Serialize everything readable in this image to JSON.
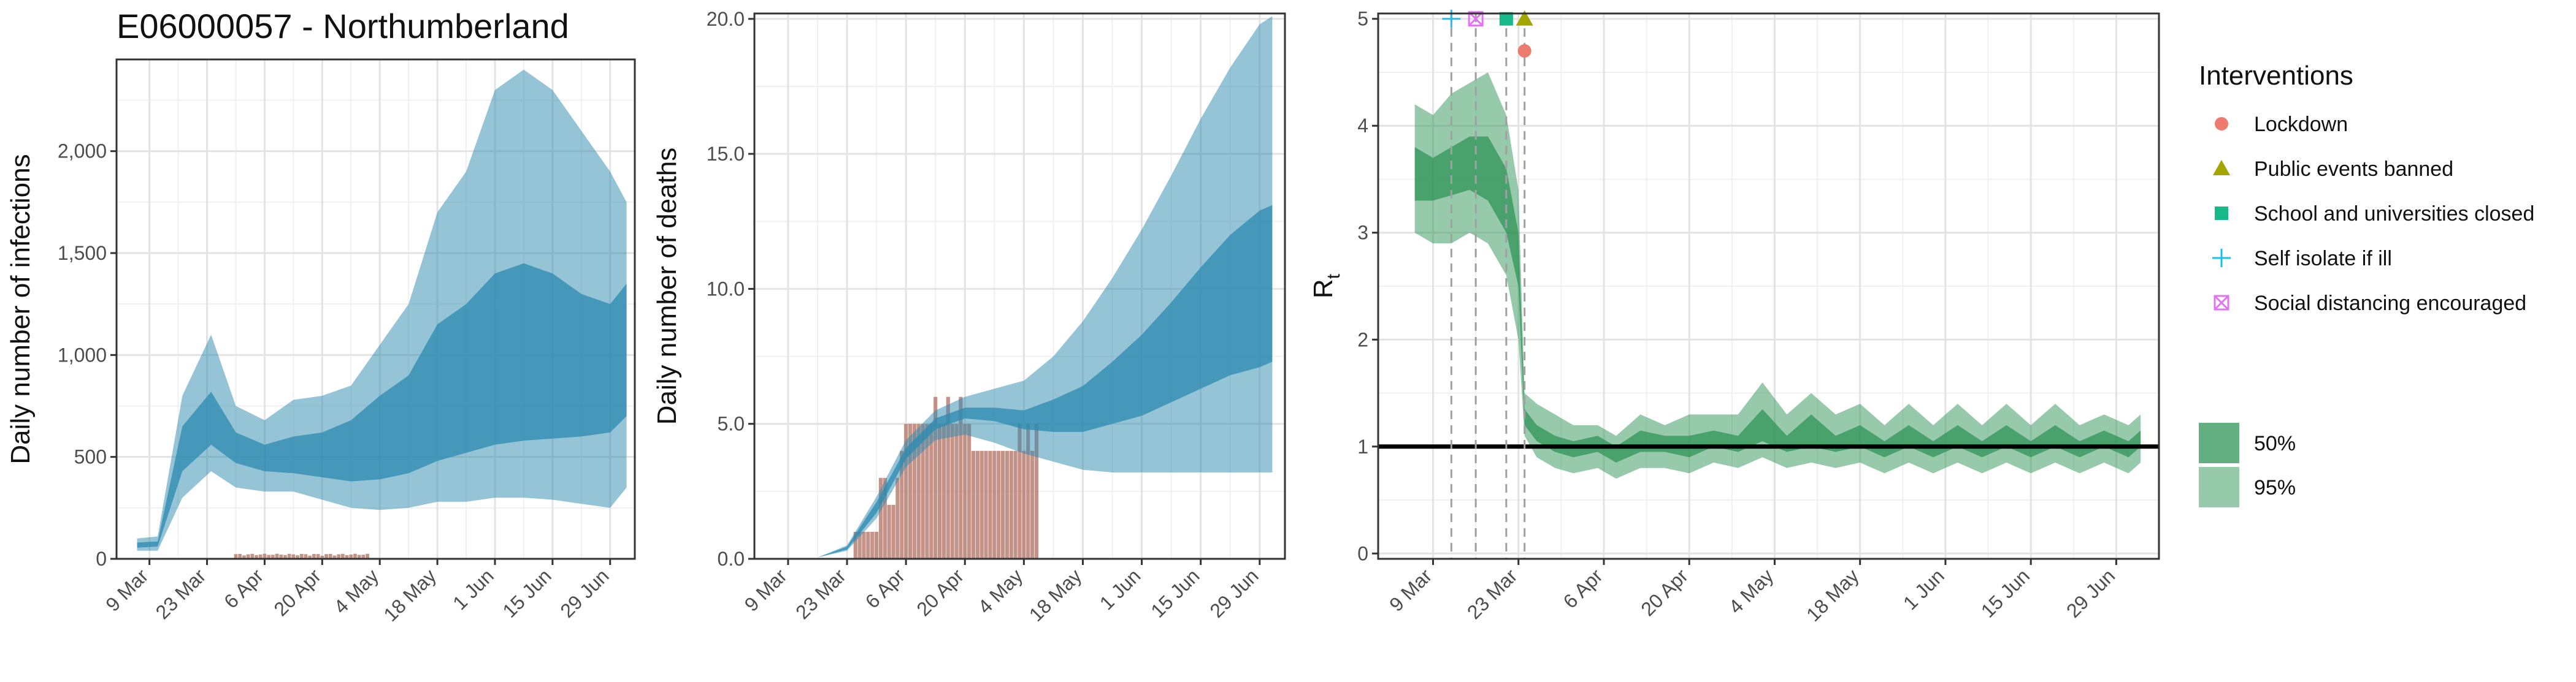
{
  "page_title": "E06000057 - Northumberland",
  "colors": {
    "infection_band": "#2b8ab0",
    "death_bar": "#b5786a",
    "rt_band": "#2f9457",
    "lockdown": "#ee7b6f",
    "public_events": "#a3a500",
    "school": "#17b889",
    "self_isolate": "#1ac0ef",
    "social_distancing": "#df73f2"
  },
  "chart_data": [
    {
      "type": "area",
      "ylabel": "Daily number of infections",
      "date_ticks": [
        "9 Mar",
        "23 Mar",
        "6 Apr",
        "20 Apr",
        "4 May",
        "18 May",
        "1 Jun",
        "15 Jun",
        "29 Jun"
      ],
      "y_ticks": [
        "0",
        "500",
        "1,000",
        "1,500",
        "2,000"
      ],
      "ylim": [
        0,
        2450
      ],
      "xlim": [
        "2020-03-01",
        "2020-07-05"
      ],
      "grid": true,
      "bars": {
        "name": "observed cases",
        "start": "2020-03-30",
        "end": "2020-05-01",
        "level": 25
      },
      "bands": [
        {
          "name": "95%",
          "dates": [
            "2020-03-06",
            "2020-03-11",
            "2020-03-17",
            "2020-03-24",
            "2020-03-30",
            "2020-04-06",
            "2020-04-13",
            "2020-04-20",
            "2020-04-27",
            "2020-05-04",
            "2020-05-11",
            "2020-05-18",
            "2020-05-25",
            "2020-06-01",
            "2020-06-08",
            "2020-06-15",
            "2020-06-22",
            "2020-06-29",
            "2020-07-03"
          ],
          "lower": [
            40,
            40,
            300,
            430,
            350,
            330,
            330,
            290,
            250,
            240,
            250,
            280,
            280,
            300,
            300,
            290,
            270,
            250,
            350
          ],
          "upper": [
            100,
            110,
            800,
            1100,
            750,
            680,
            780,
            800,
            850,
            1050,
            1250,
            1700,
            1900,
            2300,
            2400,
            2300,
            2100,
            1900,
            1750
          ]
        },
        {
          "name": "50%",
          "dates": [
            "2020-03-06",
            "2020-03-11",
            "2020-03-17",
            "2020-03-24",
            "2020-03-30",
            "2020-04-06",
            "2020-04-13",
            "2020-04-20",
            "2020-04-27",
            "2020-05-04",
            "2020-05-11",
            "2020-05-18",
            "2020-05-25",
            "2020-06-01",
            "2020-06-08",
            "2020-06-15",
            "2020-06-22",
            "2020-06-29",
            "2020-07-03"
          ],
          "lower": [
            55,
            60,
            430,
            560,
            470,
            430,
            420,
            400,
            380,
            390,
            420,
            480,
            520,
            560,
            580,
            590,
            600,
            620,
            700
          ],
          "upper": [
            80,
            85,
            650,
            820,
            620,
            560,
            600,
            620,
            680,
            800,
            900,
            1150,
            1250,
            1400,
            1450,
            1400,
            1300,
            1250,
            1350
          ]
        }
      ]
    },
    {
      "type": "area",
      "ylabel": "Daily number of deaths",
      "date_ticks": [
        "9 Mar",
        "23 Mar",
        "6 Apr",
        "20 Apr",
        "4 May",
        "18 May",
        "1 Jun",
        "15 Jun",
        "29 Jun"
      ],
      "y_ticks": [
        "0.0",
        "5.0",
        "10.0",
        "15.0",
        "20.0"
      ],
      "ylim": [
        0,
        20.2
      ],
      "xlim": [
        "2020-03-01",
        "2020-07-05"
      ],
      "grid": true,
      "bars": {
        "name": "observed deaths",
        "dates": [
          "2020-03-25",
          "2020-03-26",
          "2020-03-27",
          "2020-03-28",
          "2020-03-29",
          "2020-03-30",
          "2020-03-31",
          "2020-04-01",
          "2020-04-02",
          "2020-04-03",
          "2020-04-04",
          "2020-04-05",
          "2020-04-06",
          "2020-04-07",
          "2020-04-08",
          "2020-04-09",
          "2020-04-10",
          "2020-04-11",
          "2020-04-12",
          "2020-04-13",
          "2020-04-14",
          "2020-04-15",
          "2020-04-16",
          "2020-04-17",
          "2020-04-18",
          "2020-04-19",
          "2020-04-20",
          "2020-04-21",
          "2020-04-22",
          "2020-04-23",
          "2020-04-24",
          "2020-04-25",
          "2020-04-26",
          "2020-04-27",
          "2020-04-28",
          "2020-04-29",
          "2020-04-30",
          "2020-05-01",
          "2020-05-02",
          "2020-05-03",
          "2020-05-04",
          "2020-05-05",
          "2020-05-06",
          "2020-05-07"
        ],
        "values": [
          1,
          1,
          1,
          1,
          1,
          1,
          3,
          3,
          2,
          2,
          3,
          4,
          5,
          5,
          5,
          5,
          5,
          5,
          5,
          6,
          5,
          5,
          6,
          5,
          5,
          6,
          5,
          5,
          4,
          4,
          4,
          4,
          4,
          4,
          4,
          4,
          4,
          4,
          4,
          5,
          4,
          5,
          4,
          5
        ]
      },
      "bands": [
        {
          "name": "95%",
          "dates": [
            "2020-03-16",
            "2020-03-23",
            "2020-03-30",
            "2020-04-06",
            "2020-04-13",
            "2020-04-20",
            "2020-04-27",
            "2020-05-04",
            "2020-05-11",
            "2020-05-18",
            "2020-05-25",
            "2020-06-01",
            "2020-06-08",
            "2020-06-15",
            "2020-06-22",
            "2020-06-29",
            "2020-07-02"
          ],
          "lower": [
            0.05,
            0.3,
            1.5,
            3.4,
            4.4,
            4.6,
            4.3,
            3.9,
            3.6,
            3.3,
            3.2,
            3.2,
            3.2,
            3.2,
            3.2,
            3.2,
            3.2
          ],
          "upper": [
            0.05,
            0.5,
            2.3,
            4.4,
            5.5,
            6.0,
            6.3,
            6.6,
            7.5,
            8.8,
            10.4,
            12.2,
            14.2,
            16.3,
            18.2,
            19.8,
            20.1
          ]
        },
        {
          "name": "50%",
          "dates": [
            "2020-03-16",
            "2020-03-23",
            "2020-03-30",
            "2020-04-06",
            "2020-04-13",
            "2020-04-20",
            "2020-04-27",
            "2020-05-04",
            "2020-05-11",
            "2020-05-18",
            "2020-05-25",
            "2020-06-01",
            "2020-06-08",
            "2020-06-15",
            "2020-06-22",
            "2020-06-29",
            "2020-07-02"
          ],
          "lower": [
            0.05,
            0.35,
            1.7,
            3.7,
            4.8,
            5.2,
            5.1,
            4.8,
            4.7,
            4.7,
            5.0,
            5.3,
            5.8,
            6.3,
            6.8,
            7.1,
            7.3
          ],
          "upper": [
            0.05,
            0.45,
            2.1,
            4.1,
            5.2,
            5.6,
            5.6,
            5.5,
            5.9,
            6.4,
            7.3,
            8.3,
            9.5,
            10.8,
            12.0,
            12.9,
            13.1
          ]
        }
      ]
    },
    {
      "type": "area",
      "ylabel": "R",
      "ylabel_sub": "t",
      "date_ticks": [
        "9 Mar",
        "23 Mar",
        "6 Apr",
        "20 Apr",
        "4 May",
        "18 May",
        "1 Jun",
        "15 Jun",
        "29 Jun"
      ],
      "y_ticks": [
        "0",
        "1",
        "2",
        "3",
        "4",
        "5"
      ],
      "ylim": [
        -0.05,
        5.05
      ],
      "xlim": [
        "2020-02-29",
        "2020-07-06"
      ],
      "grid": true,
      "reference_line": 1,
      "interventions": [
        {
          "name": "Self isolate if ill",
          "date": "2020-03-12",
          "value": 5.0,
          "shape": "plus"
        },
        {
          "name": "Social distancing encouraged",
          "date": "2020-03-16",
          "value": 5.0,
          "shape": "boxx"
        },
        {
          "name": "School and universities closed",
          "date": "2020-03-21",
          "value": 5.0,
          "shape": "square"
        },
        {
          "name": "Public events banned",
          "date": "2020-03-24",
          "value": 5.0,
          "shape": "triangle"
        },
        {
          "name": "Lockdown",
          "date": "2020-03-24",
          "value": 4.7,
          "shape": "circle"
        }
      ],
      "bands": [
        {
          "name": "95%",
          "dates": [
            "2020-03-06",
            "2020-03-09",
            "2020-03-12",
            "2020-03-15",
            "2020-03-18",
            "2020-03-21",
            "2020-03-23",
            "2020-03-24",
            "2020-03-26",
            "2020-03-29",
            "2020-04-01",
            "2020-04-05",
            "2020-04-08",
            "2020-04-12",
            "2020-04-16",
            "2020-04-20",
            "2020-04-24",
            "2020-04-28",
            "2020-05-02",
            "2020-05-06",
            "2020-05-10",
            "2020-05-14",
            "2020-05-18",
            "2020-05-22",
            "2020-05-26",
            "2020-05-30",
            "2020-06-03",
            "2020-06-07",
            "2020-06-11",
            "2020-06-15",
            "2020-06-19",
            "2020-06-23",
            "2020-06-27",
            "2020-07-01",
            "2020-07-03"
          ],
          "lower": [
            3.0,
            2.9,
            2.9,
            3.0,
            2.9,
            2.6,
            2.0,
            1.1,
            0.9,
            0.8,
            0.75,
            0.8,
            0.7,
            0.8,
            0.8,
            0.75,
            0.85,
            0.8,
            0.9,
            0.8,
            0.85,
            0.8,
            0.85,
            0.75,
            0.85,
            0.75,
            0.85,
            0.75,
            0.85,
            0.75,
            0.85,
            0.75,
            0.85,
            0.75,
            0.85
          ],
          "upper": [
            4.2,
            4.1,
            4.3,
            4.4,
            4.5,
            4.1,
            3.4,
            1.5,
            1.4,
            1.3,
            1.2,
            1.2,
            1.1,
            1.3,
            1.2,
            1.3,
            1.3,
            1.3,
            1.6,
            1.3,
            1.5,
            1.3,
            1.4,
            1.2,
            1.4,
            1.2,
            1.4,
            1.2,
            1.4,
            1.2,
            1.4,
            1.2,
            1.3,
            1.2,
            1.3
          ]
        },
        {
          "name": "50%",
          "dates": [
            "2020-03-06",
            "2020-03-09",
            "2020-03-12",
            "2020-03-15",
            "2020-03-18",
            "2020-03-21",
            "2020-03-23",
            "2020-03-24",
            "2020-03-26",
            "2020-03-29",
            "2020-04-01",
            "2020-04-05",
            "2020-04-08",
            "2020-04-12",
            "2020-04-16",
            "2020-04-20",
            "2020-04-24",
            "2020-04-28",
            "2020-05-02",
            "2020-05-06",
            "2020-05-10",
            "2020-05-14",
            "2020-05-18",
            "2020-05-22",
            "2020-05-26",
            "2020-05-30",
            "2020-06-03",
            "2020-06-07",
            "2020-06-11",
            "2020-06-15",
            "2020-06-19",
            "2020-06-23",
            "2020-06-27",
            "2020-07-01",
            "2020-07-03"
          ],
          "lower": [
            3.3,
            3.3,
            3.35,
            3.4,
            3.3,
            3.0,
            2.5,
            1.2,
            1.05,
            0.95,
            0.9,
            0.95,
            0.85,
            0.95,
            0.95,
            0.9,
            1.0,
            0.95,
            1.05,
            0.95,
            1.0,
            0.95,
            1.0,
            0.9,
            1.0,
            0.9,
            1.0,
            0.9,
            1.0,
            0.9,
            1.0,
            0.9,
            1.0,
            0.9,
            1.0
          ],
          "upper": [
            3.8,
            3.7,
            3.8,
            3.9,
            3.9,
            3.6,
            3.0,
            1.35,
            1.2,
            1.1,
            1.05,
            1.1,
            1.0,
            1.15,
            1.1,
            1.1,
            1.15,
            1.1,
            1.35,
            1.1,
            1.3,
            1.1,
            1.2,
            1.05,
            1.2,
            1.05,
            1.2,
            1.05,
            1.2,
            1.05,
            1.2,
            1.05,
            1.15,
            1.05,
            1.15
          ]
        }
      ]
    }
  ],
  "legend": {
    "title": "Interventions",
    "items": [
      {
        "label": "Lockdown",
        "shape": "circle",
        "color": "#ee7b6f"
      },
      {
        "label": "Public events banned",
        "shape": "triangle",
        "color": "#a3a500"
      },
      {
        "label": "School and universities closed",
        "shape": "square",
        "color": "#17b889"
      },
      {
        "label": "Self isolate if ill",
        "shape": "plus",
        "color": "#1ac0ef"
      },
      {
        "label": "Social distancing encouraged",
        "shape": "boxx",
        "color": "#df73f2"
      }
    ],
    "bands": [
      {
        "label": "50%",
        "color": "#2f9457",
        "opacity": 0.75
      },
      {
        "label": "95%",
        "color": "#2f9457",
        "opacity": 0.5
      }
    ]
  }
}
